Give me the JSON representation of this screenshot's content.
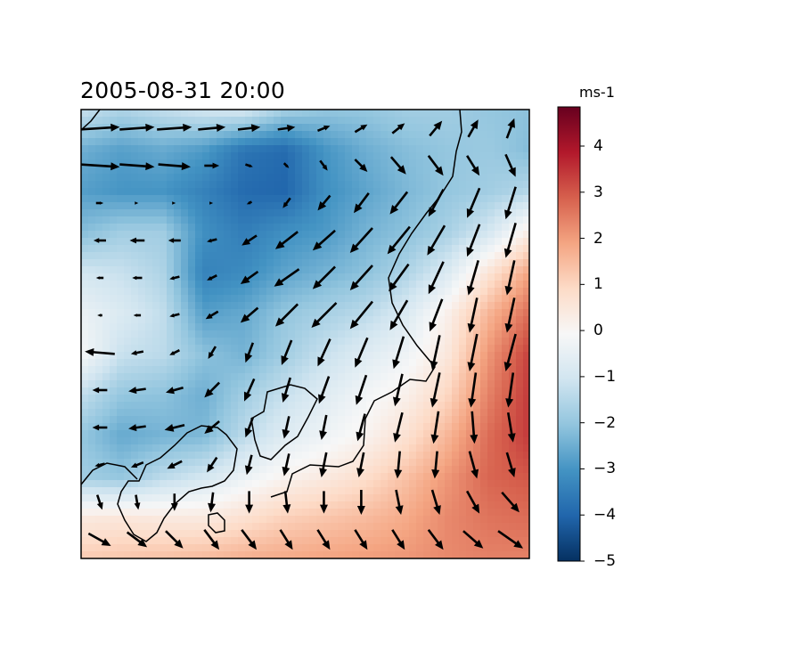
{
  "title": "2005-08-31 20:00",
  "colorbar": {
    "units": "ms-1",
    "min": -5,
    "max": 4.85,
    "ticks": [
      {
        "value": 4,
        "label": "4"
      },
      {
        "value": 3,
        "label": "3"
      },
      {
        "value": 2,
        "label": "2"
      },
      {
        "value": 1,
        "label": "1"
      },
      {
        "value": 0,
        "label": "0"
      },
      {
        "value": -1,
        "label": "−1"
      },
      {
        "value": -2,
        "label": "−2"
      },
      {
        "value": -3,
        "label": "−3"
      },
      {
        "value": -4,
        "label": "−4"
      },
      {
        "value": -5,
        "label": "−5"
      }
    ],
    "colors": [
      "#053061",
      "#2166ac",
      "#4393c3",
      "#92c5de",
      "#d1e5f0",
      "#f7f7f7",
      "#fddbc7",
      "#f4a582",
      "#d6604d",
      "#b2182b",
      "#67001f"
    ]
  },
  "map": {
    "type": "contourf-quiver",
    "grid_cols": 12,
    "grid_rows": 12,
    "field_rows": [
      [
        -1.2,
        -1.6,
        -1.3,
        -1.0,
        -0.9,
        -1.7,
        -2.0,
        -2.0,
        -1.8,
        -1.8,
        -2.0,
        -2.1
      ],
      [
        -2.5,
        -2.8,
        -2.6,
        -2.9,
        -3.7,
        -3.9,
        -3.0,
        -2.5,
        -2.2,
        -2.0,
        -1.9,
        -2.2
      ],
      [
        -2.8,
        -3.0,
        -3.0,
        -3.4,
        -3.9,
        -4.0,
        -3.1,
        -2.7,
        -2.3,
        -2.0,
        -1.8,
        -1.5
      ],
      [
        -2.2,
        -1.8,
        -1.8,
        -3.1,
        -3.5,
        -3.1,
        -2.9,
        -2.4,
        -2.1,
        -1.7,
        -1.0,
        0.3
      ],
      [
        -1.0,
        -1.2,
        -1.6,
        -3.4,
        -3.2,
        -2.7,
        -2.4,
        -2.1,
        -1.6,
        -0.8,
        0.6,
        1.9
      ],
      [
        -0.4,
        -0.8,
        -1.3,
        -2.8,
        -2.6,
        -2.0,
        -1.7,
        -1.4,
        -0.8,
        0.2,
        1.6,
        2.7
      ],
      [
        -0.1,
        -1.2,
        -1.4,
        -2.1,
        -2.4,
        -1.8,
        -1.2,
        -0.7,
        -0.3,
        0.5,
        2.1,
        3.3
      ],
      [
        -1.3,
        -2.0,
        -2.1,
        -2.5,
        -1.8,
        -1.2,
        -0.7,
        -0.2,
        0.2,
        1.0,
        2.4,
        3.4
      ],
      [
        -2.0,
        -2.6,
        -2.4,
        -2.3,
        -1.4,
        -0.7,
        -0.3,
        0.1,
        0.7,
        1.6,
        2.7,
        3.4
      ],
      [
        -1.8,
        -2.0,
        -1.4,
        -1.0,
        -0.4,
        0.1,
        0.4,
        0.8,
        1.4,
        2.1,
        2.8,
        3.0
      ],
      [
        0.4,
        0.5,
        0.4,
        0.4,
        0.7,
        1.1,
        1.3,
        1.5,
        1.8,
        2.3,
        2.6,
        2.7
      ],
      [
        1.2,
        1.3,
        1.4,
        1.5,
        1.7,
        1.8,
        1.9,
        2.0,
        2.1,
        2.3,
        2.4,
        2.4
      ]
    ],
    "wind_u": [
      [
        1.6,
        1.4,
        1.4,
        1.1,
        0.9,
        0.7,
        0.5,
        0.5,
        0.5,
        0.5,
        0.4,
        0.3
      ],
      [
        1.6,
        1.4,
        1.3,
        0.6,
        0.3,
        0.2,
        0.3,
        0.5,
        0.6,
        0.6,
        0.5,
        0.4
      ],
      [
        0.3,
        0.1,
        0.1,
        0.1,
        -0.2,
        -0.3,
        -0.5,
        -0.6,
        -0.7,
        -0.6,
        -0.5,
        -0.4
      ],
      [
        -0.5,
        -0.6,
        -0.5,
        -0.4,
        -0.6,
        -0.9,
        -0.9,
        -0.9,
        -0.9,
        -0.7,
        -0.5,
        -0.4
      ],
      [
        -0.3,
        -0.4,
        -0.4,
        -0.4,
        -0.7,
        -1.0,
        -0.9,
        -0.9,
        -0.8,
        -0.6,
        -0.4,
        -0.3
      ],
      [
        -0.2,
        -0.3,
        -0.4,
        -0.5,
        -0.7,
        -0.9,
        -1.0,
        -0.9,
        -0.7,
        -0.5,
        -0.3,
        -0.3
      ],
      [
        -1.2,
        -0.5,
        -0.4,
        -0.3,
        -0.3,
        -0.4,
        -0.5,
        -0.5,
        -0.4,
        -0.3,
        -0.3,
        -0.4
      ],
      [
        -0.6,
        -0.7,
        -0.7,
        -0.6,
        -0.4,
        -0.3,
        -0.4,
        -0.4,
        -0.3,
        -0.3,
        -0.2,
        -0.2
      ],
      [
        -0.6,
        -0.7,
        -0.8,
        -0.6,
        -0.3,
        -0.2,
        -0.2,
        -0.3,
        -0.3,
        -0.2,
        0.1,
        0.2
      ],
      [
        -0.4,
        -0.5,
        -0.6,
        -0.4,
        -0.2,
        -0.2,
        -0.2,
        -0.2,
        -0.1,
        -0.1,
        0.3,
        0.3
      ],
      [
        0.2,
        0.1,
        0.0,
        -0.1,
        0.0,
        0.1,
        0.0,
        0.0,
        0.2,
        0.3,
        0.5,
        0.7
      ],
      [
        0.9,
        0.8,
        0.7,
        0.6,
        0.6,
        0.5,
        0.5,
        0.5,
        0.5,
        0.6,
        0.8,
        1.0
      ]
    ],
    "wind_v": [
      [
        0.1,
        0.1,
        0.1,
        0.1,
        0.1,
        0.1,
        0.2,
        0.3,
        0.4,
        0.6,
        0.7,
        0.8
      ],
      [
        -0.1,
        -0.1,
        -0.1,
        0.0,
        -0.1,
        -0.2,
        -0.4,
        -0.5,
        -0.7,
        -0.8,
        -0.8,
        -0.9
      ],
      [
        0.0,
        0.0,
        0.0,
        0.0,
        -0.1,
        -0.4,
        -0.6,
        -0.8,
        -0.9,
        -1.1,
        -1.2,
        -1.3
      ],
      [
        0.0,
        0.0,
        0.0,
        -0.1,
        -0.4,
        -0.7,
        -0.8,
        -1.0,
        -1.1,
        -1.2,
        -1.3,
        -1.4
      ],
      [
        0.0,
        0.0,
        -0.1,
        -0.2,
        -0.5,
        -0.7,
        -0.9,
        -1.0,
        -1.1,
        -1.3,
        -1.4,
        -1.4
      ],
      [
        0.0,
        0.0,
        -0.1,
        -0.3,
        -0.6,
        -0.9,
        -1.0,
        -1.1,
        -1.2,
        -1.3,
        -1.4,
        -1.4
      ],
      [
        0.1,
        -0.1,
        -0.2,
        -0.5,
        -0.8,
        -1.0,
        -1.1,
        -1.2,
        -1.3,
        -1.4,
        -1.5,
        -1.5
      ],
      [
        0.0,
        -0.1,
        -0.2,
        -0.6,
        -0.9,
        -1.0,
        -1.1,
        -1.2,
        -1.3,
        -1.4,
        -1.4,
        -1.4
      ],
      [
        0.0,
        -0.1,
        -0.2,
        -0.5,
        -0.8,
        -0.9,
        -1.0,
        -1.1,
        -1.2,
        -1.3,
        -1.3,
        -1.2
      ],
      [
        -0.1,
        -0.2,
        -0.3,
        -0.6,
        -0.8,
        -0.9,
        -1.0,
        -1.0,
        -1.1,
        -1.1,
        -1.1,
        -1.0
      ],
      [
        -0.6,
        -0.6,
        -0.7,
        -0.8,
        -0.9,
        -0.9,
        -0.9,
        -1.0,
        -1.0,
        -1.0,
        -0.9,
        -0.8
      ],
      [
        -0.5,
        -0.6,
        -0.7,
        -0.8,
        -0.8,
        -0.8,
        -0.8,
        -0.8,
        -0.8,
        -0.8,
        -0.7,
        -0.7
      ]
    ]
  }
}
